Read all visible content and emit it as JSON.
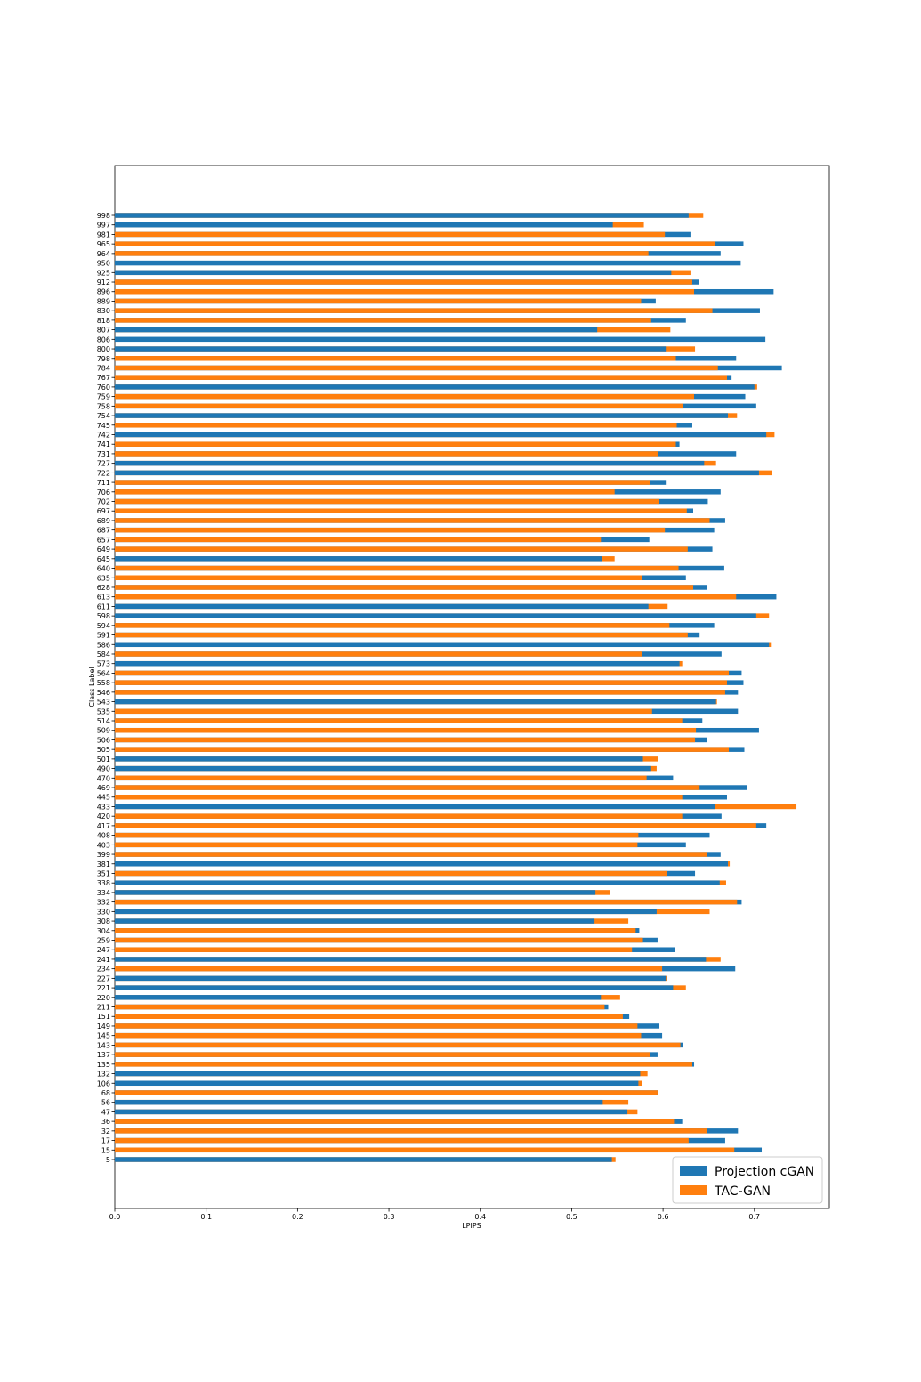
{
  "chart_data": {
    "type": "bar",
    "orientation": "horizontal",
    "xlabel": "LPIPS",
    "ylabel": "Class Label",
    "xlim": [
      0.0,
      0.782
    ],
    "xticks": [
      "0.0",
      "0.1",
      "0.2",
      "0.3",
      "0.4",
      "0.5",
      "0.6",
      "0.7"
    ],
    "legend_position": "bottom-right",
    "grid": false,
    "colors": {
      "Projection cGAN": "#1f77b4",
      "TAC-GAN": "#ff7f0e"
    },
    "categories": [
      "998",
      "997",
      "981",
      "965",
      "964",
      "950",
      "925",
      "912",
      "896",
      "889",
      "830",
      "818",
      "807",
      "806",
      "800",
      "798",
      "784",
      "767",
      "760",
      "759",
      "758",
      "754",
      "745",
      "742",
      "741",
      "731",
      "727",
      "722",
      "711",
      "706",
      "702",
      "697",
      "689",
      "687",
      "657",
      "649",
      "645",
      "640",
      "635",
      "628",
      "613",
      "611",
      "598",
      "594",
      "591",
      "586",
      "584",
      "573",
      "564",
      "558",
      "546",
      "543",
      "535",
      "514",
      "509",
      "506",
      "505",
      "501",
      "490",
      "470",
      "469",
      "445",
      "433",
      "420",
      "417",
      "408",
      "403",
      "399",
      "381",
      "351",
      "338",
      "334",
      "332",
      "330",
      "308",
      "304",
      "259",
      "247",
      "241",
      "234",
      "227",
      "221",
      "220",
      "211",
      "151",
      "149",
      "145",
      "143",
      "137",
      "135",
      "132",
      "106",
      "68",
      "56",
      "47",
      "36",
      "32",
      "17",
      "15",
      "5"
    ],
    "series": [
      {
        "name": "Projection cGAN",
        "values": [
          0.628,
          0.545,
          0.63,
          0.688,
          0.663,
          0.685,
          0.609,
          0.639,
          0.721,
          0.592,
          0.706,
          0.625,
          0.528,
          0.712,
          0.603,
          0.68,
          0.73,
          0.675,
          0.7,
          0.69,
          0.702,
          0.671,
          0.632,
          0.713,
          0.618,
          0.68,
          0.645,
          0.705,
          0.603,
          0.663,
          0.649,
          0.633,
          0.668,
          0.656,
          0.585,
          0.654,
          0.533,
          0.667,
          0.625,
          0.648,
          0.724,
          0.584,
          0.702,
          0.656,
          0.64,
          0.716,
          0.664,
          0.618,
          0.686,
          0.688,
          0.682,
          0.658,
          0.682,
          0.643,
          0.705,
          0.648,
          0.689,
          0.578,
          0.587,
          0.611,
          0.692,
          0.67,
          0.657,
          0.664,
          0.713,
          0.651,
          0.625,
          0.663,
          0.671,
          0.635,
          0.662,
          0.526,
          0.686,
          0.593,
          0.525,
          0.574,
          0.594,
          0.613,
          0.647,
          0.679,
          0.603,
          0.611,
          0.532,
          0.54,
          0.563,
          0.596,
          0.599,
          0.622,
          0.594,
          0.634,
          0.575,
          0.573,
          0.595,
          0.534,
          0.561,
          0.621,
          0.682,
          0.668,
          0.708,
          0.544
        ]
      },
      {
        "name": "TAC-GAN",
        "values": [
          0.644,
          0.579,
          0.602,
          0.657,
          0.584,
          0.0,
          0.63,
          0.632,
          0.634,
          0.576,
          0.654,
          0.587,
          0.608,
          0.0,
          0.635,
          0.614,
          0.66,
          0.67,
          0.703,
          0.634,
          0.622,
          0.681,
          0.615,
          0.722,
          0.614,
          0.595,
          0.658,
          0.719,
          0.586,
          0.547,
          0.596,
          0.626,
          0.651,
          0.602,
          0.532,
          0.627,
          0.547,
          0.617,
          0.577,
          0.633,
          0.68,
          0.605,
          0.716,
          0.607,
          0.627,
          0.718,
          0.577,
          0.621,
          0.672,
          0.67,
          0.668,
          0.659,
          0.588,
          0.621,
          0.636,
          0.635,
          0.672,
          0.595,
          0.593,
          0.582,
          0.64,
          0.621,
          0.746,
          0.621,
          0.702,
          0.573,
          0.572,
          0.648,
          0.673,
          0.604,
          0.669,
          0.542,
          0.681,
          0.651,
          0.562,
          0.57,
          0.578,
          0.566,
          0.663,
          0.599,
          0.604,
          0.625,
          0.553,
          0.536,
          0.556,
          0.572,
          0.576,
          0.619,
          0.586,
          0.632,
          0.583,
          0.577,
          0.594,
          0.562,
          0.572,
          0.612,
          0.648,
          0.628,
          0.678,
          0.548
        ]
      }
    ]
  }
}
